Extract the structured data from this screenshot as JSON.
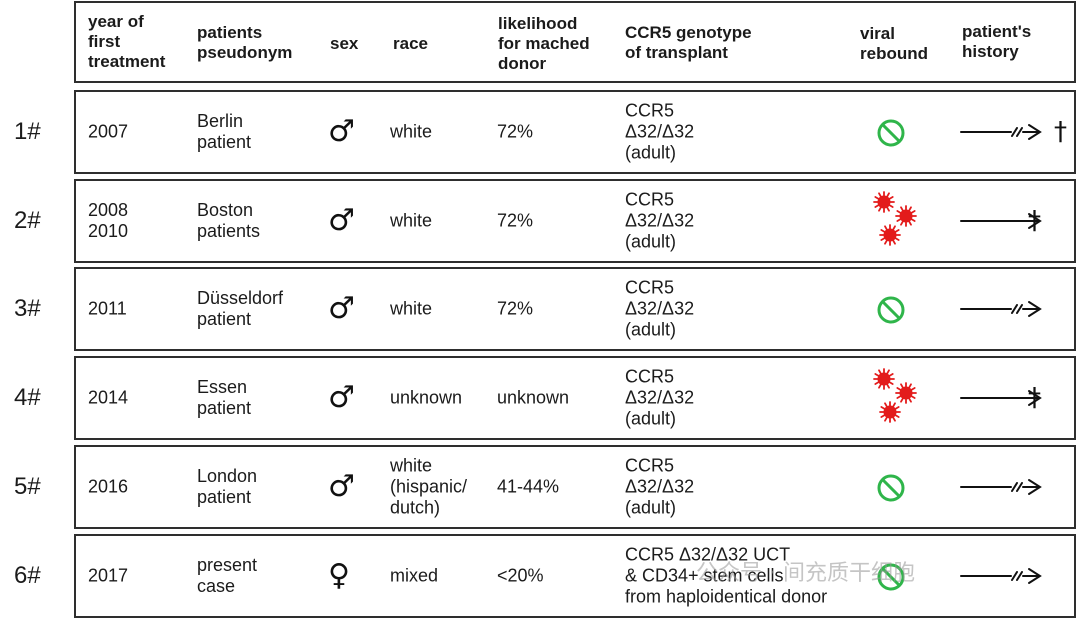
{
  "colors": {
    "no_rebound": "#2fb54a",
    "rebound": "#e31b1b",
    "border": "#2e2e2e"
  },
  "header": {
    "year": "year of\nfirst\ntreatment",
    "pseudonym": "patients\npseudonym",
    "sex": "sex",
    "race": "race",
    "likelihood": "likelihood\nfor mached\ndonor",
    "genotype": "CCR5 genotype\nof transplant",
    "rebound": "viral\nrebound",
    "history": "patient's\nhistory"
  },
  "rows": [
    {
      "label": "1#",
      "year": "2007",
      "pseudonym": "Berlin\npatient",
      "sex_symbol": "♂",
      "sex_icon": "male-icon",
      "race": "white",
      "likelihood": "72%",
      "genotype": "CCR5\nΔ32/Δ32\n(adult)",
      "rebound_icon": "no-rebound-icon",
      "history_icon": "broken-arrow-icon",
      "history_mark": "†"
    },
    {
      "label": "2#",
      "year": "2008\n2010",
      "pseudonym": "Boston\npatients",
      "sex_symbol": "♂",
      "sex_icon": "male-icon",
      "race": "white",
      "likelihood": "72%",
      "genotype": "CCR5\nΔ32/Δ32\n(adult)",
      "rebound_icon": "virus-icon",
      "history_icon": "arrow-icon",
      "history_mark": "†"
    },
    {
      "label": "3#",
      "year": "2011",
      "pseudonym": "Düsseldorf\npatient",
      "sex_symbol": "♂",
      "sex_icon": "male-icon",
      "race": "white",
      "likelihood": "72%",
      "genotype": "CCR5\nΔ32/Δ32\n(adult)",
      "rebound_icon": "no-rebound-icon",
      "history_icon": "broken-arrow-icon",
      "history_mark": ""
    },
    {
      "label": "4#",
      "year": "2014",
      "pseudonym": "Essen\npatient",
      "sex_symbol": "♂",
      "sex_icon": "male-icon",
      "race": "unknown",
      "likelihood": "unknown",
      "genotype": "CCR5\nΔ32/Δ32\n(adult)",
      "rebound_icon": "virus-icon",
      "history_icon": "arrow-icon",
      "history_mark": "†"
    },
    {
      "label": "5#",
      "year": "2016",
      "pseudonym": "London\npatient",
      "sex_symbol": "♂",
      "sex_icon": "male-icon",
      "race": "white\n(hispanic/\ndutch)",
      "likelihood": "41-44%",
      "genotype": "CCR5\nΔ32/Δ32\n(adult)",
      "rebound_icon": "no-rebound-icon",
      "history_icon": "broken-arrow-icon",
      "history_mark": ""
    },
    {
      "label": "6#",
      "year": "2017",
      "pseudonym": "present\ncase",
      "sex_symbol": "♀",
      "sex_icon": "female-icon",
      "race": "mixed",
      "likelihood": "<20%",
      "genotype": "CCR5 Δ32/Δ32 UCT\n& CD34+ stem cells\nfrom haploidentical donor",
      "rebound_icon": "no-rebound-icon",
      "history_icon": "broken-arrow-icon",
      "history_mark": ""
    }
  ],
  "watermark": "公众号 · 间充质干细胞"
}
